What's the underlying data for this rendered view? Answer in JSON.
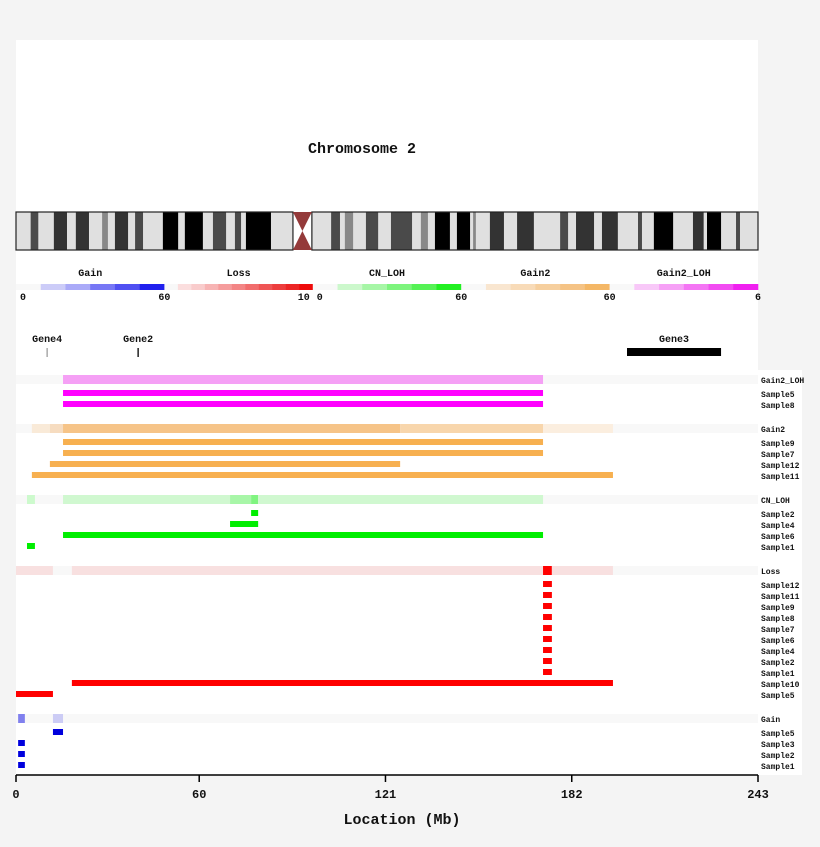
{
  "title": "Chromosome 2",
  "axis": {
    "label": "Location (Mb)",
    "min": 0,
    "max": 243,
    "ticks": [
      0,
      60,
      121,
      182,
      243
    ]
  },
  "chromosome": {
    "centromere": [
      90.7,
      96.9
    ],
    "centromere_color": "#943a3a",
    "light_color": "#e0e0e0",
    "stain_colors": {
      "gpos100": "#000000",
      "gpos75": "#333333",
      "gpos50": "#4a4a4a",
      "gpos25": "#888888"
    },
    "bands": [
      [
        4.8,
        7.3,
        "gpos50"
      ],
      [
        12.4,
        16.7,
        "gpos75"
      ],
      [
        19.6,
        23.9,
        "gpos75"
      ],
      [
        28.2,
        30.1,
        "gpos25"
      ],
      [
        32.4,
        36.7,
        "gpos75"
      ],
      [
        39.0,
        41.6,
        "gpos50"
      ],
      [
        48.1,
        53.1,
        "gpos100"
      ],
      [
        55.3,
        61.2,
        "gpos100"
      ],
      [
        64.5,
        68.8,
        "gpos50"
      ],
      [
        71.7,
        73.7,
        "gpos50"
      ],
      [
        75.3,
        83.5,
        "gpos100"
      ],
      [
        103.2,
        106.1,
        "gpos50"
      ],
      [
        107.7,
        110.4,
        "gpos25"
      ],
      [
        114.6,
        118.6,
        "gpos50"
      ],
      [
        122.8,
        129.7,
        "gpos50"
      ],
      [
        132.6,
        134.9,
        "gpos25"
      ],
      [
        137.2,
        142.1,
        "gpos100"
      ],
      [
        144.4,
        148.7,
        "gpos100"
      ],
      [
        149.7,
        150.6,
        "gpos25"
      ],
      [
        155.2,
        159.8,
        "gpos75"
      ],
      [
        164.1,
        169.6,
        "gpos75"
      ],
      [
        178.2,
        180.8,
        "gpos50"
      ],
      [
        183.4,
        189.3,
        "gpos75"
      ],
      [
        191.9,
        197.1,
        "gpos75"
      ],
      [
        203.7,
        205.0,
        "gpos50"
      ],
      [
        208.9,
        215.2,
        "gpos100"
      ],
      [
        221.7,
        225.2,
        "gpos75"
      ],
      [
        226.3,
        230.9,
        "gpos100"
      ],
      [
        235.8,
        237.1,
        "gpos50"
      ]
    ]
  },
  "legend": [
    {
      "title": "Gain",
      "start": "0",
      "end": "60",
      "colors": [
        "#f8f8f8",
        "#ccccf8",
        "#aaaaf8",
        "#7777f5",
        "#5050f2",
        "#2020ee"
      ]
    },
    {
      "title": "Loss",
      "start": "",
      "end": "10",
      "colors": [
        "#f8f8f8",
        "#fbdede",
        "#f9cccc",
        "#f7b4b4",
        "#f59c9c",
        "#f38585",
        "#f16d6d",
        "#ef5555",
        "#ed3d3d",
        "#ec2525",
        "#ee0b0b"
      ]
    },
    {
      "title": "CN_LOH",
      "start": "0",
      "end": "60",
      "colors": [
        "#f8f8f8",
        "#ccf8cc",
        "#a6f6a6",
        "#7df47d",
        "#55f255",
        "#22f022"
      ]
    },
    {
      "title": "Gain2",
      "start": "",
      "end": "60",
      "colors": [
        "#f8f8f8",
        "#f9e6d0",
        "#f8dbb8",
        "#f6cf9e",
        "#f5c385",
        "#f4b766"
      ]
    },
    {
      "title": "Gain2_LOH",
      "start": "",
      "end": "6",
      "colors": [
        "#f8f8f8",
        "#f8c8f8",
        "#f6a0f6",
        "#f475f4",
        "#f24cf2",
        "#f020f0"
      ]
    }
  ],
  "genes": [
    {
      "name": "Gene4",
      "start": 10.2,
      "end": 10.2,
      "color": "#aaaaaa"
    },
    {
      "name": "Gene2",
      "start": 40.0,
      "end": 40.0,
      "color": "#222222"
    },
    {
      "name": "Gene3",
      "start": 200.1,
      "end": 230.9,
      "color": "#000000"
    }
  ],
  "groups": [
    {
      "name": "Gain2_LOH",
      "color": "#ff00ff",
      "summary": [
        [
          15.4,
          172.6,
          "#f5a0f5"
        ]
      ],
      "samples": [
        {
          "name": "Sample5",
          "segments": [
            [
              15.4,
              172.6
            ]
          ]
        },
        {
          "name": "Sample8",
          "segments": [
            [
              15.4,
              172.6
            ]
          ]
        }
      ]
    },
    {
      "name": "Gain2",
      "color": "#f7b050",
      "summary": [
        [
          5.2,
          11.1,
          "#f9ead8"
        ],
        [
          11.1,
          15.4,
          "#f6dcc0"
        ],
        [
          15.4,
          125.8,
          "#f6c488"
        ],
        [
          125.8,
          172.6,
          "#f8d6ac"
        ],
        [
          172.6,
          195.5,
          "#fbeedf"
        ]
      ],
      "samples": [
        {
          "name": "Sample9",
          "segments": [
            [
              15.4,
              172.6
            ]
          ]
        },
        {
          "name": "Sample7",
          "segments": [
            [
              15.4,
              172.6
            ]
          ]
        },
        {
          "name": "Sample12",
          "segments": [
            [
              11.1,
              125.8
            ]
          ]
        },
        {
          "name": "Sample11",
          "segments": [
            [
              5.2,
              195.5
            ]
          ]
        }
      ]
    },
    {
      "name": "CN_LOH",
      "color": "#00ee00",
      "summary": [
        [
          3.6,
          6.2,
          "#cdfacd"
        ],
        [
          15.4,
          70.1,
          "#d0f8d0"
        ],
        [
          70.1,
          77.0,
          "#a8f6a8"
        ],
        [
          77.0,
          79.3,
          "#80f480"
        ],
        [
          79.3,
          172.6,
          "#d0f8d0"
        ]
      ],
      "samples": [
        {
          "name": "Sample2",
          "segments": [
            [
              77.0,
              79.3
            ]
          ]
        },
        {
          "name": "Sample4",
          "segments": [
            [
              70.1,
              79.3
            ]
          ]
        },
        {
          "name": "Sample6",
          "segments": [
            [
              15.4,
              172.6
            ]
          ]
        },
        {
          "name": "Sample1",
          "segments": [
            [
              3.6,
              6.2
            ]
          ]
        }
      ]
    },
    {
      "name": "Loss",
      "color": "#ff0000",
      "summary": [
        [
          0,
          12.1,
          "#f8e0e0"
        ],
        [
          18.3,
          172.6,
          "#f8e0e0"
        ],
        [
          172.6,
          175.5,
          "#ff0000"
        ],
        [
          175.5,
          195.5,
          "#f8e0e0"
        ]
      ],
      "samples": [
        {
          "name": "Sample12",
          "segments": [
            [
              172.6,
              175.5
            ]
          ]
        },
        {
          "name": "Sample11",
          "segments": [
            [
              172.6,
              175.5
            ]
          ]
        },
        {
          "name": "Sample9",
          "segments": [
            [
              172.6,
              175.5
            ]
          ]
        },
        {
          "name": "Sample8",
          "segments": [
            [
              172.6,
              175.5
            ]
          ]
        },
        {
          "name": "Sample7",
          "segments": [
            [
              172.6,
              175.5
            ]
          ]
        },
        {
          "name": "Sample6",
          "segments": [
            [
              172.6,
              175.5
            ]
          ]
        },
        {
          "name": "Sample4",
          "segments": [
            [
              172.6,
              175.5
            ]
          ]
        },
        {
          "name": "Sample2",
          "segments": [
            [
              172.6,
              175.5
            ]
          ]
        },
        {
          "name": "Sample1",
          "segments": [
            [
              172.6,
              175.5
            ]
          ]
        },
        {
          "name": "Sample10",
          "segments": [
            [
              18.3,
              195.5
            ]
          ]
        },
        {
          "name": "Sample5",
          "segments": [
            [
              0,
              12.1
            ]
          ]
        }
      ]
    },
    {
      "name": "Gain",
      "color": "#0000dd",
      "summary": [
        [
          0.7,
          2.9,
          "#8080ee"
        ],
        [
          12.1,
          15.4,
          "#ccccf5"
        ]
      ],
      "samples": [
        {
          "name": "Sample5",
          "segments": [
            [
              12.1,
              15.4
            ]
          ]
        },
        {
          "name": "Sample3",
          "segments": [
            [
              0.7,
              2.9
            ]
          ]
        },
        {
          "name": "Sample2",
          "segments": [
            [
              0.7,
              2.9
            ]
          ]
        },
        {
          "name": "Sample1",
          "segments": [
            [
              0.7,
              2.9
            ]
          ]
        }
      ]
    }
  ]
}
